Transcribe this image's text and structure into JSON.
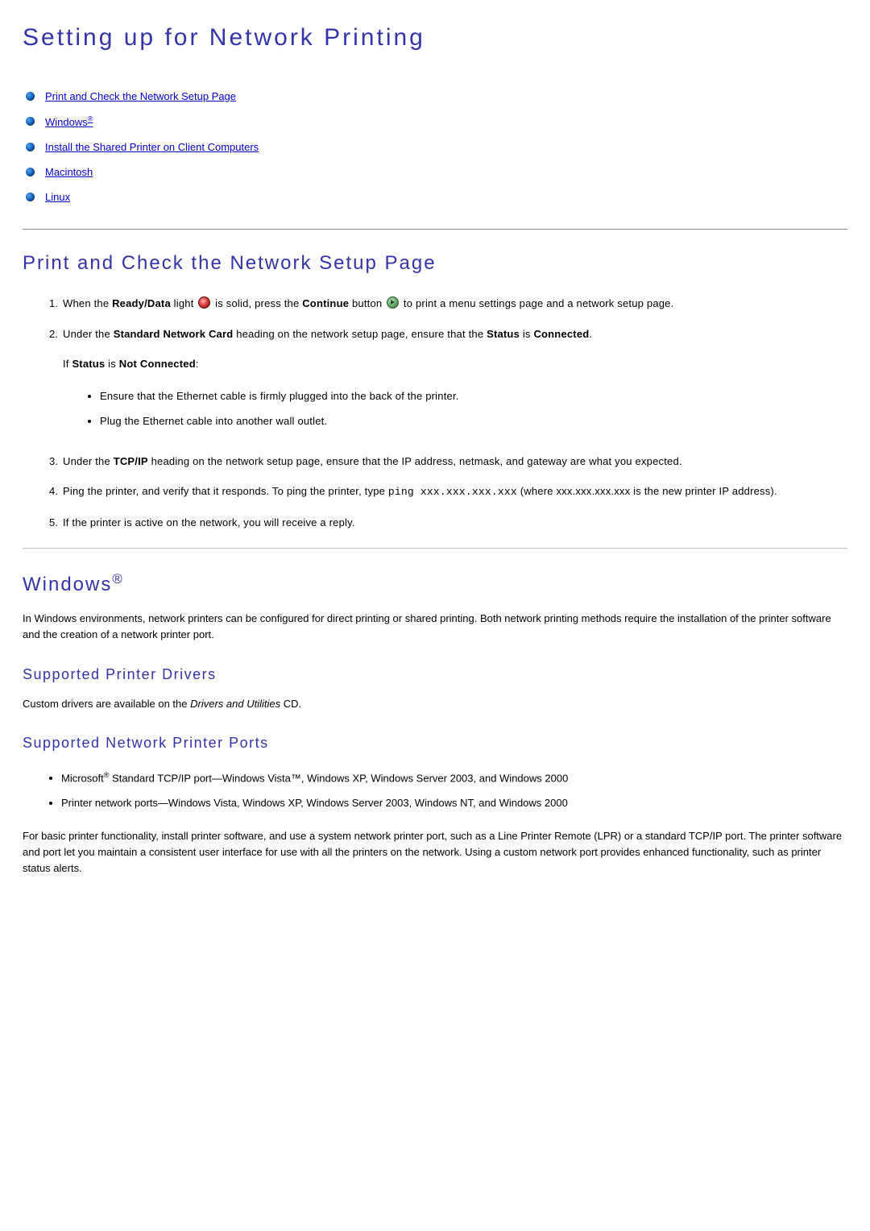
{
  "page": {
    "title": "Setting up for Network Printing"
  },
  "toc": {
    "items": [
      {
        "label": "Print and Check the Network Setup Page",
        "sup": ""
      },
      {
        "label": "Windows",
        "sup": "®"
      },
      {
        "label": "Install the Shared Printer on Client Computers",
        "sup": ""
      },
      {
        "label": "Macintosh",
        "sup": ""
      },
      {
        "label": "Linux",
        "sup": ""
      }
    ]
  },
  "section1": {
    "heading": "Print and Check the Network Setup Page",
    "step1_a": "When the ",
    "step1_b": "Ready/Data",
    "step1_c": " light ",
    "step1_d": " is solid, press the ",
    "step1_e": "Continue",
    "step1_f": " button ",
    "step1_g": " to print a menu settings page and a network setup page.",
    "step2_a": "Under the ",
    "step2_b": "Standard Network Card",
    "step2_c": " heading on the network setup page, ensure that the ",
    "step2_d": "Status",
    "step2_e": " is ",
    "step2_f": "Connected",
    "step2_g": ".",
    "if_a": "If ",
    "if_b": "Status",
    "if_c": " is ",
    "if_d": "Not Connected",
    "if_e": ":",
    "sub1": "Ensure that the Ethernet cable is firmly plugged into the back of the printer.",
    "sub2": "Plug the Ethernet cable into another wall outlet.",
    "step3_a": "Under the ",
    "step3_b": "TCP/IP",
    "step3_c": " heading on the network setup page, ensure that the IP address, netmask, and gateway are what you expected.",
    "step4_a": "Ping the printer, and verify that it responds. To ping the printer, type ",
    "step4_code": "ping xxx.xxx.xxx.xxx",
    "step4_b": " (where xxx.xxx.xxx.xxx is the new printer IP address).",
    "step5": "If the printer is active on the network, you will receive a reply."
  },
  "section2": {
    "heading": "Windows",
    "heading_sup": "®",
    "intro": "In Windows environments, network printers can be configured for direct printing or shared printing. Both network printing methods require the installation of the printer software and the creation of a network printer port.",
    "sub1_heading": "Supported Printer Drivers",
    "sub1_text_a": "Custom drivers are available on the ",
    "sub1_text_b": "Drivers and Utilities",
    "sub1_text_c": " CD.",
    "sub2_heading": "Supported Network Printer Ports",
    "port1_a": "Microsoft",
    "port1_sup": "®",
    "port1_b": " Standard TCP/IP port—Windows Vista™, Windows XP, Windows Server 2003, and Windows 2000",
    "port2": "Printer network ports—Windows Vista, Windows XP, Windows Server 2003, Windows NT, and Windows 2000",
    "outro": "For basic printer functionality, install printer software, and use a system network printer port, such as a Line Printer Remote (LPR) or a standard TCP/IP port. The printer software and port let you maintain a consistent user interface for use with all the printers on the network. Using a custom network port provides enhanced functionality, such as printer status alerts."
  }
}
